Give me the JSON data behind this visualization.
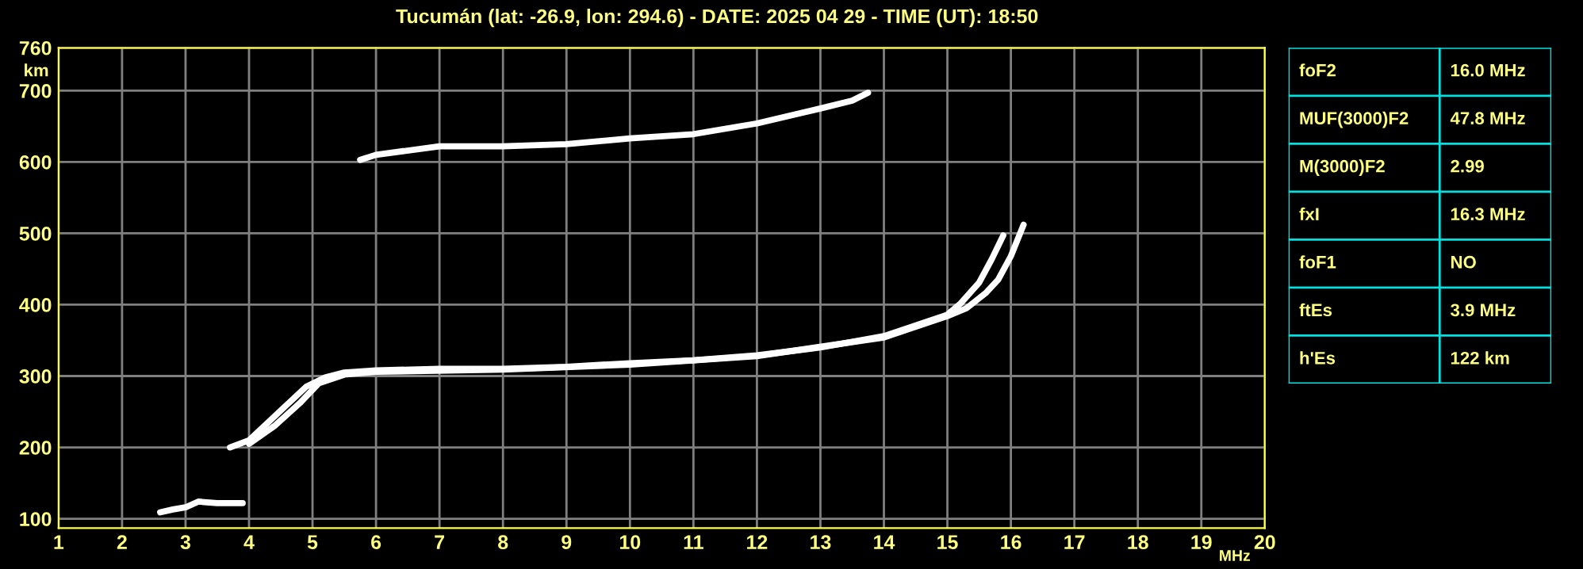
{
  "chart_data": [
    {
      "type": "line",
      "title": "Tucumán (lat: -26.9, lon: 294.6) - DATE: 2025 04 29 - TIME (UT): 18:50",
      "xlabel": "MHz",
      "ylabel": "km",
      "series": [
        {
          "color": "#ffffff",
          "x": [
            3.7,
            4.0,
            4.3,
            4.6,
            4.9,
            5.2,
            5.5,
            6,
            7,
            8,
            9,
            10,
            11,
            12,
            13,
            14,
            15,
            15.2,
            15.5,
            15.7,
            15.88
          ],
          "values": [
            200,
            210,
            235,
            260,
            285,
            298,
            305,
            308,
            310,
            310,
            313,
            318,
            322,
            329,
            340,
            356,
            386,
            401,
            431,
            464,
            497
          ]
        },
        {
          "color": "#ffffff",
          "x": [
            4.0,
            4.4,
            4.8,
            5.1,
            5.5,
            6,
            8,
            10,
            12,
            14,
            15,
            15.3,
            15.6,
            15.8,
            16.0,
            16.2
          ],
          "values": [
            205,
            230,
            262,
            290,
            302,
            306,
            309,
            316,
            328,
            354,
            384,
            395,
            416,
            435,
            468,
            512
          ]
        },
        {
          "color": "#ffffff",
          "x": [
            5.75,
            6.0,
            7,
            8,
            9,
            10,
            11,
            12,
            13,
            13.5,
            13.75
          ],
          "values": [
            603,
            610,
            622,
            622,
            625,
            633,
            639,
            654,
            675,
            686,
            697
          ]
        },
        {
          "color": "#ffffff",
          "x": [
            2.6,
            2.8,
            3.0,
            3.2,
            3.5,
            3.9
          ],
          "values": [
            109,
            113,
            116,
            124,
            122,
            122
          ]
        }
      ],
      "xlim": [
        1,
        20
      ],
      "ylim": [
        87,
        760
      ],
      "xticks": [
        1,
        2,
        3,
        4,
        5,
        6,
        7,
        8,
        9,
        10,
        11,
        12,
        13,
        14,
        15,
        16,
        17,
        18,
        19,
        20
      ],
      "yticks": [
        100,
        200,
        300,
        400,
        500,
        600,
        700,
        760
      ],
      "grid": true,
      "marker": "none",
      "line_style": "solid"
    },
    {
      "type": "other",
      "annotations": [
        "foF2",
        "16.0 MHz",
        "MUF(3000)F2",
        "47.8 MHz",
        "M(3000)F2",
        "2.99",
        "fxI",
        "16.3 MHz",
        "foF1",
        "NO",
        "ftEs",
        "3.9 MHz",
        "h'Es",
        "122 km"
      ]
    }
  ]
}
